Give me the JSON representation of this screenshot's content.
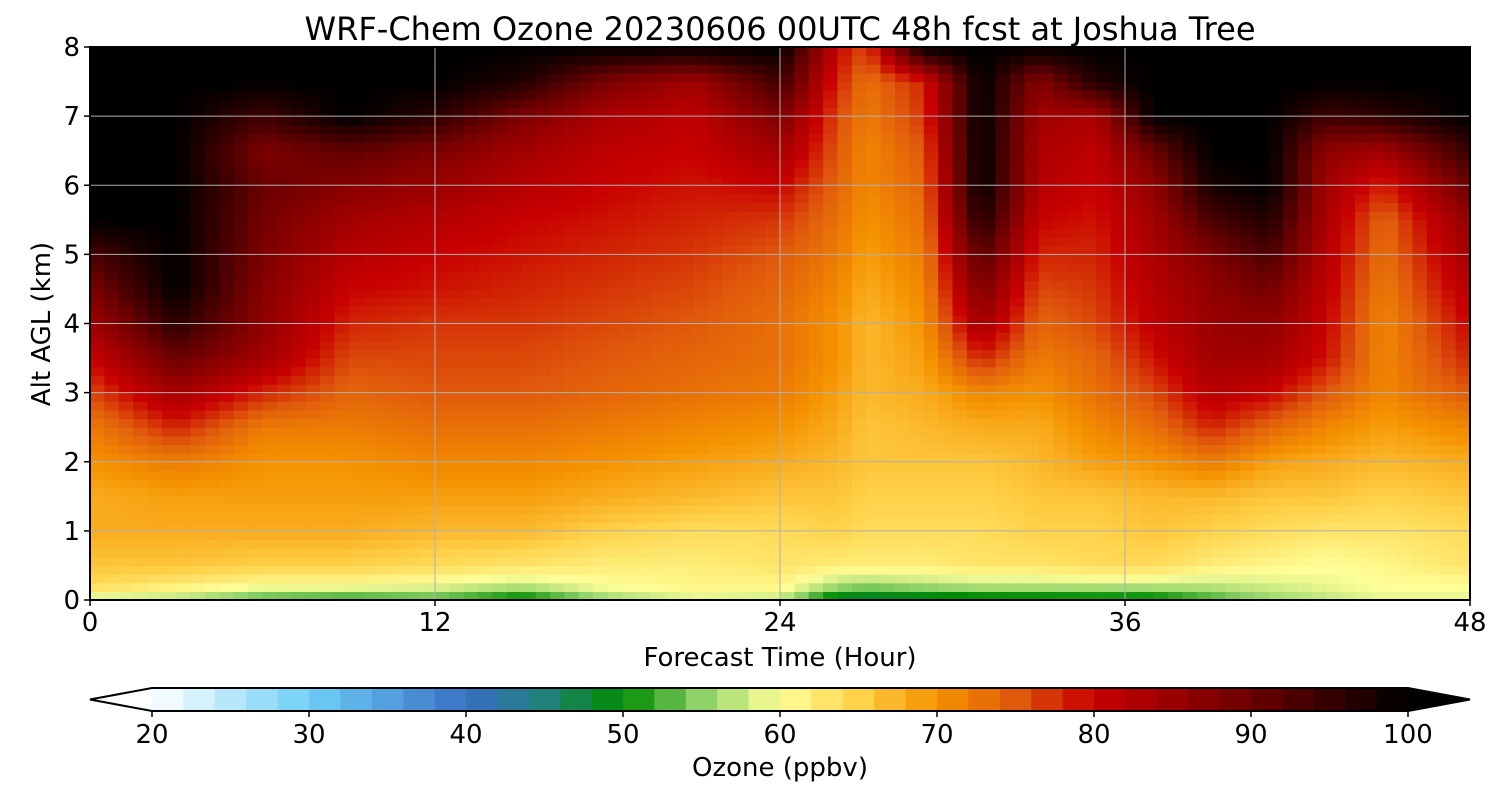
{
  "chart_data": {
    "type": "heatmap",
    "title": "WRF-Chem Ozone  20230606 00UTC 48h fcst at Joshua Tree",
    "xlabel": "Forecast Time (Hour)",
    "ylabel": "Alt AGL (km)",
    "xlim": [
      0,
      48
    ],
    "ylim": [
      0,
      8
    ],
    "xticks": [
      0,
      12,
      24,
      36,
      48
    ],
    "yticks": [
      0,
      1,
      2,
      3,
      4,
      5,
      6,
      7,
      8
    ],
    "grid": true,
    "x": [
      0,
      3,
      6,
      9,
      12,
      15,
      18,
      21,
      24,
      26,
      27,
      29,
      31,
      33,
      35,
      37,
      39,
      41,
      43,
      45,
      48
    ],
    "y": [
      0,
      0.1,
      0.2,
      0.5,
      1,
      1.5,
      2,
      2.5,
      3,
      3.5,
      4,
      4.5,
      5,
      5.5,
      6,
      6.5,
      7,
      7.5,
      8
    ],
    "z": [
      [
        58,
        58,
        55,
        54,
        55,
        52,
        56,
        58,
        57,
        50,
        50,
        50,
        51,
        51,
        52,
        52,
        54,
        56,
        57,
        58,
        58
      ],
      [
        60,
        58,
        54,
        53,
        54,
        50,
        57,
        60,
        59,
        49,
        48,
        49,
        50,
        50,
        50,
        50,
        53,
        56,
        58,
        60,
        60
      ],
      [
        64,
        62,
        60,
        60,
        59,
        57,
        60,
        61,
        61,
        56,
        55,
        56,
        57,
        57,
        57,
        57,
        57,
        58,
        59,
        60,
        60
      ],
      [
        66,
        66,
        65,
        65,
        64,
        63,
        62,
        62,
        63,
        62,
        62,
        62,
        63,
        63,
        64,
        64,
        62,
        61,
        60,
        61,
        63
      ],
      [
        68,
        68,
        68,
        68,
        67,
        67,
        65,
        64,
        64,
        65,
        64,
        64,
        64,
        65,
        65,
        66,
        65,
        64,
        63,
        63,
        64
      ],
      [
        68,
        69,
        69,
        69,
        69,
        69,
        68,
        67,
        66,
        66,
        65,
        65,
        65,
        66,
        66,
        67,
        67,
        66,
        66,
        65,
        66
      ],
      [
        70,
        72,
        70,
        70,
        71,
        71,
        70,
        69,
        68,
        67,
        66,
        66,
        66,
        67,
        69,
        70,
        72,
        69,
        68,
        67,
        68
      ],
      [
        72,
        78,
        72,
        72,
        73,
        73,
        72,
        71,
        70,
        68,
        66,
        67,
        68,
        68,
        71,
        73,
        78,
        74,
        71,
        69,
        71
      ],
      [
        76,
        84,
        78,
        74,
        75,
        75,
        74,
        73,
        72,
        69,
        67,
        68,
        71,
        70,
        73,
        76,
        82,
        80,
        75,
        71,
        75
      ],
      [
        80,
        90,
        84,
        76,
        76,
        76,
        75,
        74,
        73,
        70,
        67,
        69,
        78,
        72,
        74,
        79,
        84,
        84,
        79,
        71,
        78
      ],
      [
        84,
        96,
        86,
        78,
        77,
        77,
        76,
        75,
        73,
        70,
        67,
        70,
        84,
        74,
        76,
        81,
        85,
        86,
        80,
        71,
        80
      ],
      [
        88,
        100,
        87,
        80,
        79,
        78,
        77,
        76,
        74,
        71,
        68,
        71,
        88,
        76,
        77,
        82,
        86,
        89,
        81,
        72,
        82
      ],
      [
        93,
        100,
        88,
        82,
        80,
        79,
        78,
        77,
        75,
        72,
        69,
        72,
        92,
        78,
        78,
        83,
        88,
        93,
        82,
        73,
        84
      ],
      [
        100,
        100,
        89,
        84,
        82,
        80,
        79,
        78,
        77,
        73,
        70,
        73,
        97,
        80,
        79,
        84,
        93,
        97,
        83,
        74,
        86
      ],
      [
        100,
        100,
        90,
        87,
        85,
        82,
        80,
        79,
        80,
        74,
        71,
        74,
        100,
        82,
        80,
        86,
        98,
        100,
        84,
        78,
        90
      ],
      [
        100,
        100,
        88,
        91,
        88,
        84,
        81,
        80,
        84,
        75,
        71,
        75,
        100,
        83,
        81,
        90,
        100,
        100,
        86,
        84,
        95
      ],
      [
        100,
        100,
        94,
        100,
        96,
        88,
        83,
        81,
        88,
        76,
        72,
        77,
        100,
        84,
        83,
        100,
        100,
        100,
        94,
        96,
        100
      ],
      [
        100,
        100,
        100,
        100,
        100,
        97,
        88,
        84,
        94,
        78,
        73,
        78,
        100,
        87,
        97,
        100,
        100,
        100,
        100,
        100,
        100
      ],
      [
        100,
        100,
        100,
        100,
        100,
        100,
        100,
        100,
        100,
        80,
        76,
        100,
        100,
        100,
        100,
        100,
        100,
        100,
        100,
        100,
        100
      ]
    ],
    "colorbar": {
      "label": "Ozone  (ppbv)",
      "min": 20,
      "max": 100,
      "ticks": [
        20,
        30,
        40,
        50,
        60,
        70,
        80,
        90,
        100
      ],
      "extend": "both",
      "orientation": "horizontal",
      "stops": [
        {
          "v": 20,
          "c": "#ffffff"
        },
        {
          "v": 30,
          "c": "#6ecff6"
        },
        {
          "v": 40,
          "c": "#3a6fc4"
        },
        {
          "v": 45,
          "c": "#21807a"
        },
        {
          "v": 50,
          "c": "#008c00"
        },
        {
          "v": 55,
          "c": "#8fd26a"
        },
        {
          "v": 60,
          "c": "#ffff99"
        },
        {
          "v": 65,
          "c": "#ffd24a"
        },
        {
          "v": 70,
          "c": "#f59200"
        },
        {
          "v": 75,
          "c": "#e05a0c"
        },
        {
          "v": 80,
          "c": "#c80000"
        },
        {
          "v": 90,
          "c": "#6b0000"
        },
        {
          "v": 100,
          "c": "#000000"
        }
      ]
    }
  }
}
